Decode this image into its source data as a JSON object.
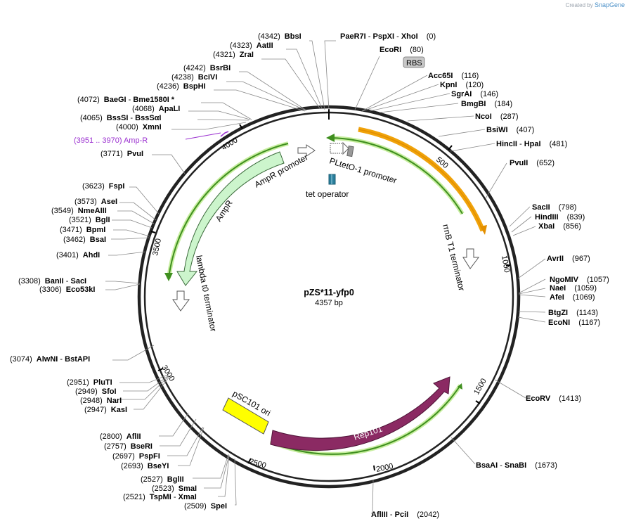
{
  "credit": {
    "prefix": "Created by",
    "brand": "SnapGene"
  },
  "plasmid": {
    "name": "pZS*11-yfp0",
    "length_label": "4357 bp",
    "length": 4357
  },
  "ticks": [
    "500",
    "1000",
    "1500",
    "2000",
    "2500",
    "3000",
    "3500",
    "4000"
  ],
  "sites": [
    {
      "name": "PaeR7I",
      "extra": [
        "PspXI",
        "XhoI"
      ],
      "pos": "(0)"
    },
    {
      "name": "BbsI",
      "pos": "(4342)"
    },
    {
      "name": "AatII",
      "pos": "(4323)"
    },
    {
      "name": "ZraI",
      "pos": "(4321)"
    },
    {
      "name": "BsrBI",
      "pos": "(4242)"
    },
    {
      "name": "BciVI",
      "pos": "(4238)"
    },
    {
      "name": "BspHI",
      "pos": "(4236)"
    },
    {
      "name": "BaeGI",
      "extra": [
        "Bme1580I *"
      ],
      "pos": "(4072)"
    },
    {
      "name": "ApaLI",
      "pos": "(4068)"
    },
    {
      "name": "BssSI",
      "extra": [
        "BssSαI"
      ],
      "pos": "(4065)"
    },
    {
      "name": "XmnI",
      "pos": "(4000)"
    },
    {
      "name": "PvuI",
      "pos": "(3771)"
    },
    {
      "name": "FspI",
      "pos": "(3623)"
    },
    {
      "name": "AseI",
      "pos": "(3573)"
    },
    {
      "name": "NmeAIII",
      "pos": "(3549)"
    },
    {
      "name": "BglI",
      "pos": "(3521)"
    },
    {
      "name": "BpmI",
      "pos": "(3471)"
    },
    {
      "name": "BsaI",
      "pos": "(3462)"
    },
    {
      "name": "AhdI",
      "pos": "(3401)"
    },
    {
      "name": "BanII",
      "extra": [
        "SacI"
      ],
      "pos": "(3308)"
    },
    {
      "name": "Eco53kI",
      "pos": "(3306)"
    },
    {
      "name": "AlwNI",
      "extra": [
        "BstAPI"
      ],
      "pos": "(3074)"
    },
    {
      "name": "PluTI",
      "pos": "(2951)"
    },
    {
      "name": "SfoI",
      "pos": "(2949)"
    },
    {
      "name": "NarI",
      "pos": "(2948)"
    },
    {
      "name": "KasI",
      "pos": "(2947)"
    },
    {
      "name": "AflII",
      "pos": "(2800)"
    },
    {
      "name": "BseRI",
      "pos": "(2757)"
    },
    {
      "name": "PspFI",
      "pos": "(2697)"
    },
    {
      "name": "BseYI",
      "pos": "(2693)"
    },
    {
      "name": "BglII",
      "pos": "(2527)"
    },
    {
      "name": "SmaI",
      "pos": "(2523)"
    },
    {
      "name": "TspMI",
      "extra": [
        "XmaI"
      ],
      "pos": "(2521)"
    },
    {
      "name": "SpeI",
      "pos": "(2509)"
    },
    {
      "name": "AflIII",
      "extra": [
        "PciI"
      ],
      "pos": "(2042)"
    },
    {
      "name": "BsaAI",
      "extra": [
        "SnaBI"
      ],
      "pos": "(1673)"
    },
    {
      "name": "EcoRV",
      "pos": "(1413)"
    },
    {
      "name": "EcoNI",
      "pos": "(1167)"
    },
    {
      "name": "BtgZI",
      "pos": "(1143)"
    },
    {
      "name": "AfeI",
      "pos": "(1069)"
    },
    {
      "name": "NaeI",
      "pos": "(1059)"
    },
    {
      "name": "NgoMIV",
      "pos": "(1057)"
    },
    {
      "name": "AvrII",
      "pos": "(967)"
    },
    {
      "name": "XbaI",
      "pos": "(856)"
    },
    {
      "name": "HindIII",
      "pos": "(839)"
    },
    {
      "name": "SacII",
      "pos": "(798)"
    },
    {
      "name": "PvuII",
      "pos": "(652)"
    },
    {
      "name": "HincII",
      "extra": [
        "HpaI"
      ],
      "pos": "(481)"
    },
    {
      "name": "BsiWI",
      "pos": "(407)"
    },
    {
      "name": "NcoI",
      "pos": "(287)"
    },
    {
      "name": "BmgBI",
      "pos": "(184)"
    },
    {
      "name": "SgrAI",
      "pos": "(146)"
    },
    {
      "name": "KpnI",
      "pos": "(120)"
    },
    {
      "name": "Acc65I",
      "pos": "(116)"
    },
    {
      "name": "EcoRI",
      "pos": "(80)"
    }
  ],
  "primer": {
    "label": "(3951 .. 3970)  Amp-R",
    "color": "#9b30d0"
  },
  "features": {
    "rbs": "RBS",
    "pltet": "PLtetO-1 promoter",
    "tet_operator": "tet operator",
    "rrnb": "rrnB T1 terminator",
    "ampr_promoter": "AmpR promoter",
    "ampr": "AmpR",
    "lambda": "lambda t0 terminator",
    "psc101": "pSC101 ori",
    "rep101": "Rep101"
  },
  "colors": {
    "orange": "#f0a30a",
    "green": "#3f8f1f",
    "ampr_fill": "#ccf5cc",
    "rep101": "#8b2a63",
    "psc101": "#ffff00",
    "operator": "#2a7f9c"
  }
}
